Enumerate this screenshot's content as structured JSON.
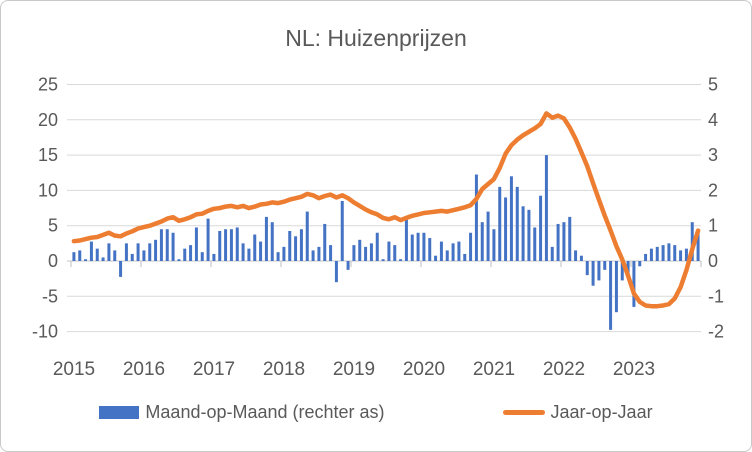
{
  "title": "NL: Huizenprijzen",
  "legend": {
    "bars": "Maand-op-Maand (rechter as)",
    "line": "Jaar-op-Jaar"
  },
  "colors": {
    "bars": "#4472C4",
    "line": "#ED7D31",
    "text": "#595959",
    "grid": "#D9D9D9",
    "axis": "#BFBFBF"
  },
  "chart_data": {
    "type": "bar",
    "subtype": "combo bar+line, dual axis, monthly Jan 2015 - Dec 2023",
    "title": "NL: Huizenprijzen",
    "x_tick_labels": [
      "2015",
      "2016",
      "2017",
      "2018",
      "2019",
      "2020",
      "2021",
      "2022",
      "2023"
    ],
    "left_axis": {
      "ticks": [
        25,
        20,
        15,
        10,
        5,
        0,
        -5,
        -10
      ],
      "max": 25,
      "min": -10,
      "series": "Jaar-op-Jaar"
    },
    "right_axis": {
      "ticks": [
        5,
        4,
        3,
        2,
        1,
        0,
        -1,
        -2
      ],
      "max": 5,
      "min": -2,
      "series": "Maand-op-Maand"
    },
    "grid": "horizontal only",
    "legend_position": "bottom",
    "series": [
      {
        "name": "Maand-op-Maand (rechter as)",
        "type": "bar",
        "axis": "right",
        "values": [
          0.25,
          0.3,
          0.05,
          0.55,
          0.35,
          0.1,
          0.5,
          0.3,
          -0.45,
          0.5,
          0.2,
          0.5,
          0.3,
          0.5,
          0.6,
          0.9,
          0.9,
          0.8,
          0.05,
          0.35,
          0.45,
          0.95,
          0.25,
          1.2,
          0.2,
          0.85,
          0.9,
          0.9,
          0.95,
          0.5,
          0.35,
          0.75,
          0.55,
          1.25,
          1.1,
          0.25,
          0.4,
          0.85,
          0.7,
          0.9,
          1.4,
          0.3,
          0.4,
          1.05,
          0.45,
          -0.6,
          1.7,
          -0.25,
          0.45,
          0.6,
          0.4,
          0.5,
          0.8,
          0.05,
          0.55,
          0.45,
          0.05,
          1.25,
          0.75,
          0.8,
          0.8,
          0.65,
          0.15,
          0.55,
          0.3,
          0.5,
          0.55,
          0.2,
          0.8,
          2.45,
          1.1,
          1.4,
          0.9,
          2.1,
          1.8,
          2.4,
          2.1,
          1.55,
          1.45,
          0.95,
          1.85,
          3.0,
          0.4,
          1.05,
          1.1,
          1.25,
          0.3,
          0.15,
          -0.4,
          -0.7,
          -0.55,
          -0.25,
          -1.95,
          -1.45,
          -0.55,
          -0.4,
          -1.3,
          -0.15,
          0.2,
          0.35,
          0.4,
          0.45,
          0.5,
          0.45,
          0.3,
          0.35,
          1.1,
          0.9
        ]
      },
      {
        "name": "Jaar-op-Jaar",
        "type": "line",
        "axis": "left",
        "values": [
          2.8,
          2.9,
          3.1,
          3.3,
          3.4,
          3.7,
          4.0,
          3.6,
          3.5,
          3.9,
          4.2,
          4.6,
          4.8,
          5.0,
          5.3,
          5.6,
          6.0,
          6.2,
          5.7,
          5.9,
          6.2,
          6.6,
          6.7,
          7.1,
          7.4,
          7.5,
          7.7,
          7.8,
          7.6,
          7.8,
          7.5,
          7.7,
          8.0,
          8.1,
          8.3,
          8.2,
          8.4,
          8.7,
          8.9,
          9.1,
          9.5,
          9.3,
          8.9,
          9.2,
          9.4,
          9.0,
          9.3,
          8.9,
          8.3,
          7.8,
          7.3,
          6.9,
          6.6,
          6.1,
          5.9,
          6.2,
          5.8,
          6.1,
          6.4,
          6.6,
          6.8,
          6.9,
          7.0,
          7.1,
          7.0,
          7.2,
          7.4,
          7.6,
          7.9,
          8.8,
          10.2,
          10.9,
          11.6,
          13.2,
          15.2,
          16.4,
          17.2,
          17.8,
          18.3,
          18.8,
          19.4,
          20.9,
          20.3,
          20.6,
          20.2,
          18.9,
          17.3,
          15.4,
          13.4,
          11.0,
          8.7,
          6.4,
          4.3,
          2.1,
          0.2,
          -2.1,
          -4.6,
          -5.8,
          -6.3,
          -6.4,
          -6.4,
          -6.3,
          -6.1,
          -5.3,
          -3.7,
          -1.3,
          1.7,
          4.3
        ]
      }
    ]
  }
}
